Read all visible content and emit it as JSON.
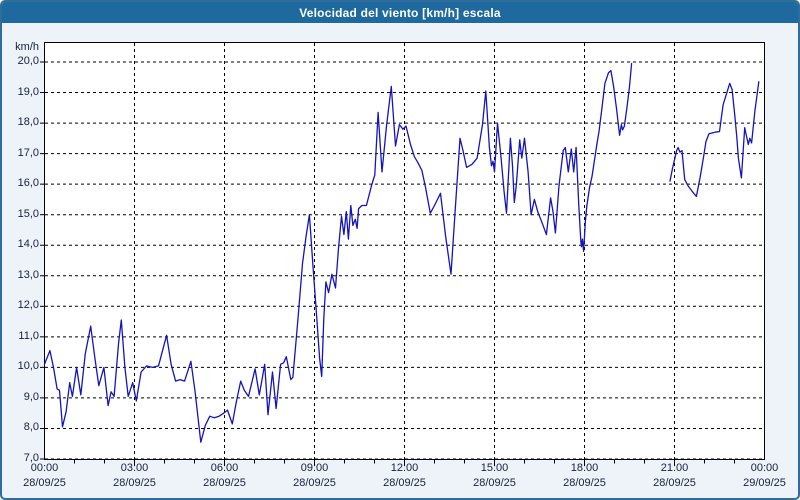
{
  "window": {
    "title": "Velocidad del viento [km/h] escala"
  },
  "chart": {
    "unit_label": "km/h",
    "colors": {
      "titlebar": "#1e6a9e",
      "frame": "#2f6d9d",
      "body_bg": "#edf3f9",
      "plot_bg": "#ffffff",
      "grid": "#000000",
      "line": "#1414bc",
      "tick_text": "#16203c"
    }
  },
  "chart_data": {
    "type": "line",
    "title": "Velocidad del viento [km/h] escala",
    "ylabel": "km/h",
    "xlabel": "",
    "ylim": [
      7.0,
      20.0
    ],
    "y_tick_step": 1.0,
    "y_tick_labels": [
      "20,0",
      "19,0",
      "18,0",
      "17,0",
      "16,0",
      "15,0",
      "14,0",
      "13,0",
      "12,0",
      "11,0",
      "10,0",
      "9,0",
      "8,0",
      "7,0"
    ],
    "x_unit": "hours since 00:00 28/09/25",
    "xlim": [
      0,
      24
    ],
    "x_tick_hours": [
      0,
      3,
      6,
      9,
      12,
      15,
      18,
      21,
      24
    ],
    "x_tick_labels": [
      {
        "time": "00:00",
        "date": "28/09/25"
      },
      {
        "time": "03:00",
        "date": "28/09/25"
      },
      {
        "time": "06:00",
        "date": "28/09/25"
      },
      {
        "time": "09:00",
        "date": "28/09/25"
      },
      {
        "time": "12:00",
        "date": "28/09/25"
      },
      {
        "time": "15:00",
        "date": "28/09/25"
      },
      {
        "time": "18:00",
        "date": "28/09/25"
      },
      {
        "time": "21:00",
        "date": "28/09/25"
      },
      {
        "time": "00:00",
        "date": "29/09/25"
      }
    ],
    "grid": true,
    "legend": "none",
    "series": [
      {
        "name": "Velocidad del viento",
        "color": "#1414bc",
        "note": "gap in data between ~19:40 and ~20:50",
        "segments": [
          [
            [
              0.0,
              10.1
            ],
            [
              0.18,
              10.55
            ],
            [
              0.3,
              10.0
            ],
            [
              0.42,
              9.3
            ],
            [
              0.5,
              9.25
            ],
            [
              0.6,
              8.05
            ],
            [
              0.72,
              8.55
            ],
            [
              0.84,
              9.5
            ],
            [
              0.93,
              9.05
            ],
            [
              1.07,
              10.0
            ],
            [
              1.21,
              9.1
            ],
            [
              1.36,
              10.45
            ],
            [
              1.54,
              11.35
            ],
            [
              1.68,
              10.3
            ],
            [
              1.81,
              9.4
            ],
            [
              1.98,
              10.0
            ],
            [
              2.12,
              8.75
            ],
            [
              2.22,
              9.2
            ],
            [
              2.32,
              9.05
            ],
            [
              2.47,
              10.8
            ],
            [
              2.56,
              11.55
            ],
            [
              2.68,
              10.0
            ],
            [
              2.79,
              9.05
            ],
            [
              2.94,
              9.5
            ],
            [
              3.06,
              8.9
            ],
            [
              3.22,
              9.85
            ],
            [
              3.4,
              10.05
            ],
            [
              3.6,
              10.0
            ],
            [
              3.8,
              10.05
            ],
            [
              4.07,
              11.05
            ],
            [
              4.22,
              10.1
            ],
            [
              4.37,
              9.55
            ],
            [
              4.52,
              9.6
            ],
            [
              4.67,
              9.55
            ],
            [
              4.88,
              10.2
            ],
            [
              5.02,
              9.2
            ],
            [
              5.21,
              7.55
            ],
            [
              5.36,
              8.1
            ],
            [
              5.51,
              8.4
            ],
            [
              5.66,
              8.35
            ],
            [
              5.82,
              8.4
            ],
            [
              5.97,
              8.5
            ],
            [
              6.1,
              8.6
            ],
            [
              6.26,
              8.15
            ],
            [
              6.4,
              8.9
            ],
            [
              6.54,
              9.55
            ],
            [
              6.66,
              9.25
            ],
            [
              6.8,
              9.05
            ],
            [
              7.02,
              9.95
            ],
            [
              7.16,
              9.1
            ],
            [
              7.34,
              10.1
            ],
            [
              7.45,
              8.45
            ],
            [
              7.6,
              9.85
            ],
            [
              7.72,
              8.65
            ],
            [
              7.87,
              10.1
            ],
            [
              7.97,
              10.15
            ],
            [
              8.06,
              10.35
            ],
            [
              8.13,
              10.0
            ],
            [
              8.21,
              9.6
            ],
            [
              8.28,
              9.68
            ],
            [
              8.45,
              11.6
            ],
            [
              8.6,
              13.4
            ],
            [
              8.72,
              14.3
            ],
            [
              8.83,
              15.0
            ],
            [
              8.95,
              13.3
            ],
            [
              9.07,
              11.7
            ],
            [
              9.17,
              10.3
            ],
            [
              9.24,
              9.7
            ],
            [
              9.31,
              11.6
            ],
            [
              9.38,
              12.8
            ],
            [
              9.47,
              12.45
            ],
            [
              9.58,
              13.05
            ],
            [
              9.7,
              12.6
            ],
            [
              9.8,
              13.9
            ],
            [
              9.9,
              14.95
            ],
            [
              9.98,
              14.35
            ],
            [
              10.06,
              15.1
            ],
            [
              10.13,
              14.2
            ],
            [
              10.21,
              15.3
            ],
            [
              10.28,
              14.65
            ],
            [
              10.36,
              14.85
            ],
            [
              10.42,
              14.55
            ],
            [
              10.47,
              15.2
            ],
            [
              10.58,
              15.3
            ],
            [
              10.73,
              15.3
            ],
            [
              10.9,
              15.95
            ],
            [
              11.01,
              16.3
            ],
            [
              11.12,
              18.35
            ],
            [
              11.25,
              16.4
            ],
            [
              11.4,
              17.9
            ],
            [
              11.56,
              19.2
            ],
            [
              11.7,
              17.25
            ],
            [
              11.83,
              17.95
            ],
            [
              11.95,
              17.8
            ],
            [
              12.05,
              17.9
            ],
            [
              12.2,
              17.3
            ],
            [
              12.33,
              16.9
            ],
            [
              12.45,
              16.7
            ],
            [
              12.58,
              16.45
            ],
            [
              12.7,
              15.9
            ],
            [
              12.86,
              15.05
            ],
            [
              13.0,
              15.3
            ],
            [
              13.2,
              15.7
            ],
            [
              13.37,
              14.3
            ],
            [
              13.55,
              13.05
            ],
            [
              13.7,
              15.3
            ],
            [
              13.85,
              17.5
            ],
            [
              13.95,
              17.1
            ],
            [
              14.07,
              16.55
            ],
            [
              14.25,
              16.65
            ],
            [
              14.42,
              16.85
            ],
            [
              14.6,
              17.95
            ],
            [
              14.71,
              19.05
            ],
            [
              14.83,
              17.2
            ],
            [
              14.9,
              16.6
            ],
            [
              14.95,
              16.75
            ],
            [
              15.0,
              16.4
            ],
            [
              15.1,
              18.0
            ],
            [
              15.22,
              16.85
            ],
            [
              15.32,
              15.75
            ],
            [
              15.4,
              15.05
            ],
            [
              15.53,
              17.5
            ],
            [
              15.6,
              16.6
            ],
            [
              15.66,
              15.4
            ],
            [
              15.73,
              16.0
            ],
            [
              15.84,
              17.45
            ],
            [
              15.91,
              16.85
            ],
            [
              16.0,
              17.5
            ],
            [
              16.12,
              16.4
            ],
            [
              16.22,
              15.0
            ],
            [
              16.33,
              15.5
            ],
            [
              16.44,
              15.1
            ],
            [
              16.58,
              14.75
            ],
            [
              16.73,
              14.35
            ],
            [
              16.87,
              15.55
            ],
            [
              16.95,
              15.1
            ],
            [
              17.03,
              14.4
            ],
            [
              17.15,
              15.95
            ],
            [
              17.29,
              17.1
            ],
            [
              17.36,
              17.2
            ],
            [
              17.46,
              16.4
            ],
            [
              17.56,
              17.15
            ],
            [
              17.64,
              16.4
            ],
            [
              17.72,
              17.2
            ],
            [
              17.81,
              15.3
            ],
            [
              17.88,
              14.1
            ],
            [
              17.9,
              13.95
            ],
            [
              17.93,
              14.2
            ],
            [
              17.97,
              13.8
            ],
            [
              18.03,
              14.8
            ],
            [
              18.08,
              15.3
            ],
            [
              18.17,
              15.9
            ],
            [
              18.25,
              16.25
            ],
            [
              18.35,
              16.9
            ],
            [
              18.42,
              17.35
            ],
            [
              18.48,
              17.7
            ],
            [
              18.57,
              18.4
            ],
            [
              18.68,
              19.3
            ],
            [
              18.8,
              19.65
            ],
            [
              18.88,
              19.72
            ],
            [
              18.97,
              19.2
            ],
            [
              19.07,
              18.45
            ],
            [
              19.17,
              17.6
            ],
            [
              19.23,
              17.95
            ],
            [
              19.27,
              17.78
            ],
            [
              19.33,
              17.9
            ],
            [
              19.42,
              18.55
            ],
            [
              19.5,
              19.2
            ],
            [
              19.57,
              19.95
            ]
          ],
          [
            [
              20.85,
              16.1
            ],
            [
              20.93,
              16.5
            ],
            [
              21.07,
              17.1
            ],
            [
              21.12,
              17.2
            ],
            [
              21.18,
              17.05
            ],
            [
              21.25,
              17.1
            ],
            [
              21.34,
              16.15
            ],
            [
              21.45,
              15.95
            ],
            [
              21.6,
              15.75
            ],
            [
              21.73,
              15.6
            ],
            [
              21.85,
              16.2
            ],
            [
              21.97,
              16.9
            ],
            [
              22.05,
              17.4
            ],
            [
              22.15,
              17.65
            ],
            [
              22.35,
              17.7
            ],
            [
              22.5,
              17.72
            ],
            [
              22.62,
              18.6
            ],
            [
              22.84,
              19.3
            ],
            [
              22.92,
              19.1
            ],
            [
              23.01,
              18.25
            ],
            [
              23.08,
              17.5
            ],
            [
              23.13,
              16.85
            ],
            [
              23.23,
              16.2
            ],
            [
              23.34,
              17.85
            ],
            [
              23.46,
              17.3
            ],
            [
              23.51,
              17.5
            ],
            [
              23.57,
              17.35
            ],
            [
              23.68,
              18.4
            ],
            [
              23.81,
              19.35
            ]
          ]
        ]
      }
    ]
  }
}
